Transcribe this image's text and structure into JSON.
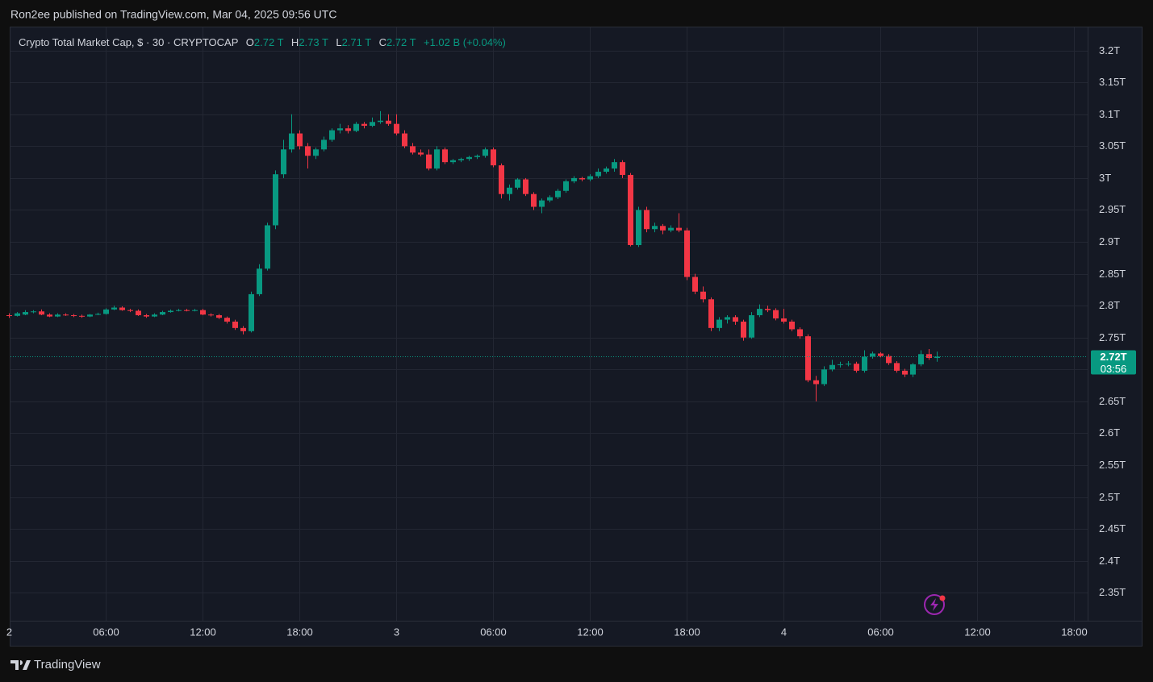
{
  "published": "Ron2ee published on TradingView.com, Mar 04, 2025 09:56 UTC",
  "logo": "TradingView",
  "chart_data": {
    "type": "candlestick",
    "symbol": "Crypto Total Market Cap, $ · 30 · CRYPTOCAP",
    "ohlc_legend": [
      {
        "key": "O",
        "value": "2.72 T"
      },
      {
        "key": "H",
        "value": "2.73 T"
      },
      {
        "key": "L",
        "value": "2.71 T"
      },
      {
        "key": "C",
        "value": "2.72 T"
      }
    ],
    "change": "+1.02 B (+0.04%)",
    "up_color": "#089981",
    "down_color": "#f23645",
    "grid": true,
    "xlim": [
      0.2,
      133.7
    ],
    "xticks": [
      {
        "value": 0,
        "label": "2"
      },
      {
        "value": 12,
        "label": "06:00"
      },
      {
        "value": 24,
        "label": "12:00"
      },
      {
        "value": 36,
        "label": "18:00"
      },
      {
        "value": 48,
        "label": "3"
      },
      {
        "value": 60,
        "label": "06:00"
      },
      {
        "value": 72,
        "label": "12:00"
      },
      {
        "value": 84,
        "label": "18:00"
      },
      {
        "value": 96,
        "label": "4"
      },
      {
        "value": 108,
        "label": "06:00"
      },
      {
        "value": 120,
        "label": "12:00"
      },
      {
        "value": 132,
        "label": "18:00"
      }
    ],
    "ylim": [
      2.306,
      3.235
    ],
    "yticks": [
      {
        "value": 3.2,
        "label": "3.2T"
      },
      {
        "value": 3.15,
        "label": "3.15T"
      },
      {
        "value": 3.1,
        "label": "3.1T"
      },
      {
        "value": 3.05,
        "label": "3.05T"
      },
      {
        "value": 3,
        "label": "3T"
      },
      {
        "value": 2.95,
        "label": "2.95T"
      },
      {
        "value": 2.9,
        "label": "2.9T"
      },
      {
        "value": 2.85,
        "label": "2.85T"
      },
      {
        "value": 2.8,
        "label": "2.8T"
      },
      {
        "value": 2.75,
        "label": "2.75T"
      },
      {
        "value": 2.7,
        "label": "2.7T"
      },
      {
        "value": 2.65,
        "label": "2.65T"
      },
      {
        "value": 2.6,
        "label": "2.6T"
      },
      {
        "value": 2.55,
        "label": "2.55T"
      },
      {
        "value": 2.5,
        "label": "2.5T"
      },
      {
        "value": 2.45,
        "label": "2.45T"
      },
      {
        "value": 2.4,
        "label": "2.4T"
      },
      {
        "value": 2.35,
        "label": "2.35T"
      }
    ],
    "last_price": {
      "value": 2.72,
      "label": "2.72T"
    },
    "countdown": "03:56",
    "candles": [
      [
        2.785,
        2.788,
        2.781,
        2.784
      ],
      [
        2.784,
        2.79,
        2.783,
        2.788
      ],
      [
        2.786,
        2.793,
        2.785,
        2.79
      ],
      [
        2.79,
        2.793,
        2.788,
        2.791
      ],
      [
        2.791,
        2.794,
        2.785,
        2.786
      ],
      [
        2.786,
        2.788,
        2.782,
        2.783
      ],
      [
        2.783,
        2.788,
        2.782,
        2.786
      ],
      [
        2.786,
        2.788,
        2.784,
        2.785
      ],
      [
        2.785,
        2.787,
        2.782,
        2.784
      ],
      [
        2.784,
        2.786,
        2.781,
        2.783
      ],
      [
        2.783,
        2.787,
        2.782,
        2.786
      ],
      [
        2.786,
        2.789,
        2.785,
        2.787
      ],
      [
        2.787,
        2.796,
        2.786,
        2.794
      ],
      [
        2.794,
        2.8,
        2.793,
        2.797
      ],
      [
        2.797,
        2.799,
        2.792,
        2.793
      ],
      [
        2.793,
        2.795,
        2.79,
        2.792
      ],
      [
        2.792,
        2.794,
        2.784,
        2.785
      ],
      [
        2.785,
        2.787,
        2.781,
        2.783
      ],
      [
        2.783,
        2.788,
        2.782,
        2.786
      ],
      [
        2.786,
        2.792,
        2.785,
        2.79
      ],
      [
        2.79,
        2.794,
        2.789,
        2.792
      ],
      [
        2.792,
        2.795,
        2.791,
        2.793
      ],
      [
        2.793,
        2.795,
        2.791,
        2.792
      ],
      [
        2.792,
        2.795,
        2.791,
        2.793
      ],
      [
        2.793,
        2.795,
        2.785,
        2.786
      ],
      [
        2.786,
        2.788,
        2.783,
        2.785
      ],
      [
        2.785,
        2.787,
        2.779,
        2.781
      ],
      [
        2.781,
        2.783,
        2.772,
        2.775
      ],
      [
        2.775,
        2.778,
        2.762,
        2.765
      ],
      [
        2.765,
        2.768,
        2.755,
        2.76
      ],
      [
        2.76,
        2.822,
        2.758,
        2.818
      ],
      [
        2.818,
        2.865,
        2.815,
        2.858
      ],
      [
        2.858,
        2.93,
        2.855,
        2.926
      ],
      [
        2.926,
        3.012,
        2.92,
        3.006
      ],
      [
        3.006,
        3.06,
        3.0,
        3.045
      ],
      [
        3.045,
        3.1,
        3.04,
        3.07
      ],
      [
        3.07,
        3.075,
        3.045,
        3.05
      ],
      [
        3.05,
        3.055,
        3.015,
        3.035
      ],
      [
        3.035,
        3.048,
        3.03,
        3.045
      ],
      [
        3.045,
        3.065,
        3.042,
        3.06
      ],
      [
        3.06,
        3.078,
        3.057,
        3.075
      ],
      [
        3.075,
        3.085,
        3.07,
        3.078
      ],
      [
        3.078,
        3.083,
        3.07,
        3.074
      ],
      [
        3.074,
        3.088,
        3.072,
        3.085
      ],
      [
        3.085,
        3.088,
        3.078,
        3.082
      ],
      [
        3.082,
        3.095,
        3.08,
        3.088
      ],
      [
        3.088,
        3.105,
        3.085,
        3.09
      ],
      [
        3.09,
        3.1,
        3.082,
        3.085
      ],
      [
        3.085,
        3.1,
        3.067,
        3.07
      ],
      [
        3.07,
        3.075,
        3.047,
        3.05
      ],
      [
        3.05,
        3.055,
        3.037,
        3.04
      ],
      [
        3.04,
        3.045,
        3.034,
        3.037
      ],
      [
        3.037,
        3.045,
        3.012,
        3.015
      ],
      [
        3.015,
        3.05,
        3.012,
        3.045
      ],
      [
        3.045,
        3.048,
        3.022,
        3.025
      ],
      [
        3.025,
        3.03,
        3.022,
        3.028
      ],
      [
        3.028,
        3.032,
        3.025,
        3.03
      ],
      [
        3.03,
        3.035,
        3.027,
        3.033
      ],
      [
        3.033,
        3.037,
        3.03,
        3.035
      ],
      [
        3.035,
        3.048,
        3.032,
        3.045
      ],
      [
        3.045,
        3.048,
        3.017,
        3.02
      ],
      [
        3.02,
        3.023,
        2.968,
        2.975
      ],
      [
        2.975,
        2.99,
        2.965,
        2.985
      ],
      [
        2.985,
        3.0,
        2.982,
        2.998
      ],
      [
        2.998,
        3.0,
        2.972,
        2.975
      ],
      [
        2.975,
        2.978,
        2.95,
        2.955
      ],
      [
        2.955,
        2.968,
        2.945,
        2.965
      ],
      [
        2.965,
        2.973,
        2.962,
        2.97
      ],
      [
        2.97,
        2.983,
        2.967,
        2.98
      ],
      [
        2.98,
        2.998,
        2.977,
        2.995
      ],
      [
        2.995,
        3.003,
        2.992,
        3.0
      ],
      [
        3.0,
        3.002,
        2.995,
        2.998
      ],
      [
        2.998,
        3.006,
        2.995,
        3.003
      ],
      [
        3.003,
        3.015,
        3.0,
        3.01
      ],
      [
        3.01,
        3.018,
        3.007,
        3.015
      ],
      [
        3.015,
        3.03,
        3.01,
        3.025
      ],
      [
        3.025,
        3.028,
        3.0,
        3.005
      ],
      [
        3.005,
        3.008,
        2.893,
        2.895
      ],
      [
        2.895,
        2.955,
        2.892,
        2.95
      ],
      [
        2.95,
        2.955,
        2.915,
        2.92
      ],
      [
        2.92,
        2.93,
        2.915,
        2.925
      ],
      [
        2.925,
        2.928,
        2.912,
        2.918
      ],
      [
        2.918,
        2.926,
        2.915,
        2.922
      ],
      [
        2.922,
        2.945,
        2.915,
        2.918
      ],
      [
        2.918,
        2.922,
        2.84,
        2.845
      ],
      [
        2.845,
        2.85,
        2.818,
        2.822
      ],
      [
        2.822,
        2.83,
        2.805,
        2.81
      ],
      [
        2.81,
        2.813,
        2.76,
        2.765
      ],
      [
        2.765,
        2.782,
        2.76,
        2.778
      ],
      [
        2.778,
        2.785,
        2.772,
        2.782
      ],
      [
        2.782,
        2.785,
        2.77,
        2.775
      ],
      [
        2.775,
        2.778,
        2.745,
        2.75
      ],
      [
        2.75,
        2.79,
        2.748,
        2.785
      ],
      [
        2.785,
        2.802,
        2.782,
        2.795
      ],
      [
        2.795,
        2.8,
        2.79,
        2.793
      ],
      [
        2.793,
        2.796,
        2.777,
        2.78
      ],
      [
        2.78,
        2.795,
        2.772,
        2.775
      ],
      [
        2.775,
        2.778,
        2.76,
        2.763
      ],
      [
        2.763,
        2.766,
        2.748,
        2.752
      ],
      [
        2.752,
        2.755,
        2.68,
        2.683
      ],
      [
        2.683,
        2.69,
        2.65,
        2.677
      ],
      [
        2.677,
        2.705,
        2.674,
        2.7
      ],
      [
        2.7,
        2.715,
        2.697,
        2.707
      ],
      [
        2.707,
        2.712,
        2.703,
        2.708
      ],
      [
        2.708,
        2.713,
        2.705,
        2.709
      ],
      [
        2.709,
        2.712,
        2.695,
        2.698
      ],
      [
        2.698,
        2.73,
        2.695,
        2.72
      ],
      [
        2.72,
        2.728,
        2.717,
        2.725
      ],
      [
        2.725,
        2.727,
        2.719,
        2.721
      ],
      [
        2.721,
        2.724,
        2.707,
        2.71
      ],
      [
        2.71,
        2.713,
        2.695,
        2.698
      ],
      [
        2.698,
        2.701,
        2.688,
        2.692
      ],
      [
        2.692,
        2.71,
        2.688,
        2.708
      ],
      [
        2.708,
        2.73,
        2.705,
        2.724
      ],
      [
        2.724,
        2.732,
        2.715,
        2.718
      ],
      [
        2.718,
        2.728,
        2.712,
        2.72
      ]
    ]
  }
}
